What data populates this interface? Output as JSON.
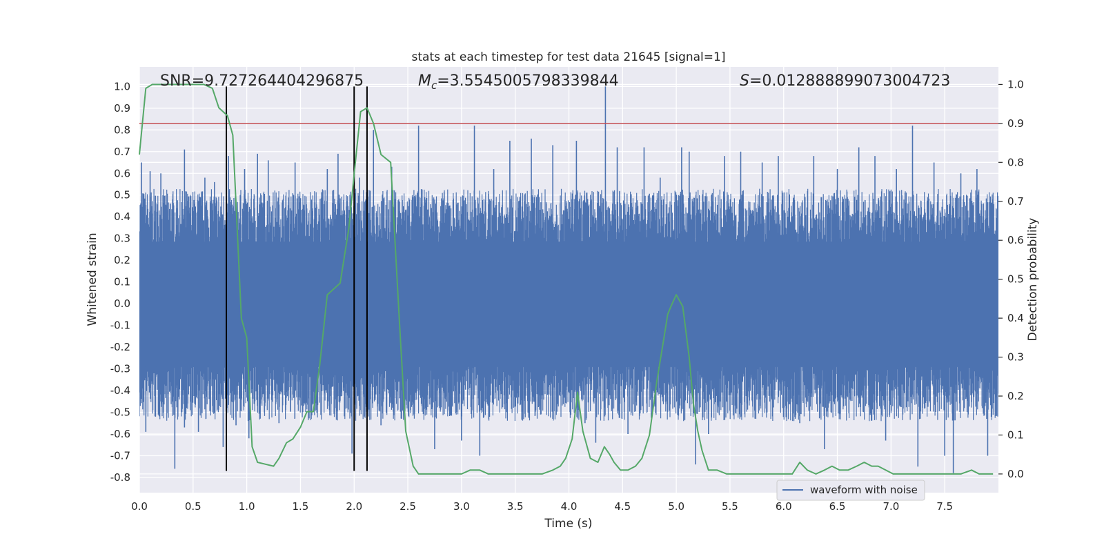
{
  "chart_data": {
    "type": "line",
    "title": "stats at each timestep for test data 21645 [signal=1]",
    "xlabel": "Time (s)",
    "ylabel_left": "Whitened strain",
    "ylabel_right": "Detection probability",
    "xlim": [
      0.0,
      8.0
    ],
    "ylim_left": [
      -0.87,
      1.09
    ],
    "ylim_right": [
      -0.048,
      1.045
    ],
    "x_ticks": [
      "0.0",
      "0.5",
      "1.0",
      "1.5",
      "2.0",
      "2.5",
      "3.0",
      "3.5",
      "4.0",
      "4.5",
      "5.0",
      "5.5",
      "6.0",
      "6.5",
      "7.0",
      "7.5"
    ],
    "y_ticks_left": [
      "1.0",
      "0.9",
      "0.8",
      "0.7",
      "0.6",
      "0.5",
      "0.4",
      "0.3",
      "0.2",
      "0.1",
      "0.0",
      "-0.1",
      "-0.2",
      "-0.3",
      "-0.4",
      "-0.5",
      "-0.6",
      "-0.7",
      "-0.8"
    ],
    "y_ticks_right": [
      "1.0",
      "0.9",
      "0.8",
      "0.7",
      "0.6",
      "0.5",
      "0.4",
      "0.3",
      "0.2",
      "0.1",
      "0.0"
    ],
    "grid": true,
    "legend": {
      "position": "lower-right",
      "entries": [
        "waveform with noise"
      ]
    },
    "annotations": {
      "snr": "SNR=9.727264404296875",
      "mc_symbol": "M",
      "mc_sub": "c",
      "mc_value": "=3.5545005798339844",
      "s_symbol": "S",
      "s_value": "=0.012888899073004723"
    },
    "threshold_line": {
      "axis": "right",
      "y": 0.9,
      "color": "#c44e52"
    },
    "vertical_lines": {
      "x": [
        0.81,
        2.0,
        2.12
      ],
      "y_range_left": [
        -0.77,
        1.0
      ],
      "color": "#000000"
    },
    "strain_series": {
      "name": "waveform with noise",
      "color": "#4c72b0",
      "x_range": [
        0.0,
        8.0
      ],
      "typical_positive": 0.46,
      "typical_negative": -0.47,
      "spikes": [
        [
          0.02,
          0.65
        ],
        [
          0.06,
          -0.59
        ],
        [
          0.1,
          0.61
        ],
        [
          0.15,
          -0.52
        ],
        [
          0.2,
          0.6
        ],
        [
          0.33,
          -0.76
        ],
        [
          0.42,
          -0.57
        ],
        [
          0.42,
          0.71
        ],
        [
          0.55,
          -0.59
        ],
        [
          0.61,
          0.58
        ],
        [
          0.7,
          0.56
        ],
        [
          0.78,
          -0.66
        ],
        [
          0.83,
          0.68
        ],
        [
          0.9,
          -0.56
        ],
        [
          0.98,
          0.62
        ],
        [
          1.02,
          -0.62
        ],
        [
          1.1,
          0.69
        ],
        [
          1.2,
          0.66
        ],
        [
          1.3,
          -0.55
        ],
        [
          1.45,
          0.65
        ],
        [
          1.6,
          -0.53
        ],
        [
          1.75,
          0.62
        ],
        [
          1.85,
          0.69
        ],
        [
          1.98,
          -0.69
        ],
        [
          2.05,
          0.58
        ],
        [
          2.18,
          0.8
        ],
        [
          2.25,
          -0.56
        ],
        [
          2.35,
          0.63
        ],
        [
          2.6,
          0.82
        ],
        [
          2.75,
          -0.67
        ],
        [
          3.0,
          -0.63
        ],
        [
          3.12,
          0.82
        ],
        [
          3.17,
          -0.7
        ],
        [
          3.3,
          0.62
        ],
        [
          3.45,
          0.75
        ],
        [
          3.65,
          0.76
        ],
        [
          3.85,
          0.73
        ],
        [
          4.07,
          0.75
        ],
        [
          4.15,
          -0.55
        ],
        [
          4.25,
          -0.64
        ],
        [
          4.34,
          1.0
        ],
        [
          4.45,
          0.72
        ],
        [
          4.55,
          -0.6
        ],
        [
          4.7,
          0.72
        ],
        [
          4.85,
          0.58
        ],
        [
          5.05,
          0.72
        ],
        [
          5.12,
          0.7
        ],
        [
          5.18,
          -0.74
        ],
        [
          5.3,
          -0.6
        ],
        [
          5.45,
          0.68
        ],
        [
          5.6,
          0.7
        ],
        [
          5.8,
          0.65
        ],
        [
          5.95,
          0.68
        ],
        [
          6.15,
          -0.55
        ],
        [
          6.28,
          0.68
        ],
        [
          6.38,
          -0.67
        ],
        [
          6.5,
          0.62
        ],
        [
          6.7,
          0.72
        ],
        [
          6.85,
          0.68
        ],
        [
          6.95,
          -0.63
        ],
        [
          7.05,
          0.62
        ],
        [
          7.2,
          0.82
        ],
        [
          7.25,
          -0.75
        ],
        [
          7.4,
          0.65
        ],
        [
          7.5,
          -0.7
        ],
        [
          7.58,
          -0.78
        ],
        [
          7.65,
          0.6
        ],
        [
          7.8,
          0.62
        ],
        [
          7.9,
          -0.7
        ]
      ]
    },
    "probability_series": {
      "axis": "right",
      "color": "#55a868",
      "x": [
        0.0,
        0.06,
        0.12,
        0.2,
        0.3,
        0.4,
        0.5,
        0.6,
        0.68,
        0.74,
        0.82,
        0.87,
        0.95,
        1.0,
        1.05,
        1.1,
        1.25,
        1.3,
        1.37,
        1.43,
        1.5,
        1.56,
        1.62,
        1.68,
        1.75,
        1.87,
        1.95,
        2.0,
        2.06,
        2.12,
        2.18,
        2.25,
        2.34,
        2.42,
        2.48,
        2.55,
        2.6,
        2.8,
        3.0,
        3.08,
        3.17,
        3.25,
        3.35,
        3.5,
        3.62,
        3.75,
        3.85,
        3.92,
        3.97,
        4.03,
        4.08,
        4.13,
        4.2,
        4.27,
        4.33,
        4.38,
        4.42,
        4.48,
        4.55,
        4.62,
        4.68,
        4.75,
        4.82,
        4.88,
        4.92,
        4.95,
        5.0,
        5.06,
        5.12,
        5.16,
        5.2,
        5.24,
        5.3,
        5.38,
        5.47,
        5.55,
        5.7,
        5.9,
        6.0,
        6.08,
        6.15,
        6.22,
        6.3,
        6.38,
        6.45,
        6.52,
        6.6,
        6.68,
        6.75,
        6.82,
        6.88,
        6.95,
        7.02,
        7.1,
        7.18,
        7.3,
        7.5,
        7.55,
        7.65,
        7.75,
        7.82,
        7.95
      ],
      "y": [
        0.82,
        0.99,
        1.0,
        1.0,
        1.0,
        1.0,
        1.0,
        1.0,
        0.99,
        0.94,
        0.92,
        0.87,
        0.4,
        0.35,
        0.07,
        0.03,
        0.02,
        0.04,
        0.08,
        0.09,
        0.12,
        0.16,
        0.16,
        0.28,
        0.46,
        0.49,
        0.63,
        0.77,
        0.93,
        0.94,
        0.9,
        0.82,
        0.8,
        0.4,
        0.11,
        0.02,
        0.0,
        0.0,
        0.0,
        0.01,
        0.01,
        0.0,
        0.0,
        0.0,
        0.0,
        0.0,
        0.01,
        0.02,
        0.04,
        0.09,
        0.21,
        0.11,
        0.04,
        0.03,
        0.07,
        0.05,
        0.03,
        0.01,
        0.01,
        0.02,
        0.04,
        0.1,
        0.24,
        0.34,
        0.41,
        0.43,
        0.46,
        0.43,
        0.3,
        0.18,
        0.11,
        0.06,
        0.01,
        0.01,
        0.0,
        0.0,
        0.0,
        0.0,
        0.0,
        0.0,
        0.03,
        0.01,
        0.0,
        0.01,
        0.02,
        0.01,
        0.01,
        0.02,
        0.03,
        0.02,
        0.02,
        0.01,
        0.0,
        0.0,
        0.0,
        0.0,
        0.0,
        0.0,
        0.0,
        0.01,
        0.0,
        0.0
      ]
    }
  }
}
